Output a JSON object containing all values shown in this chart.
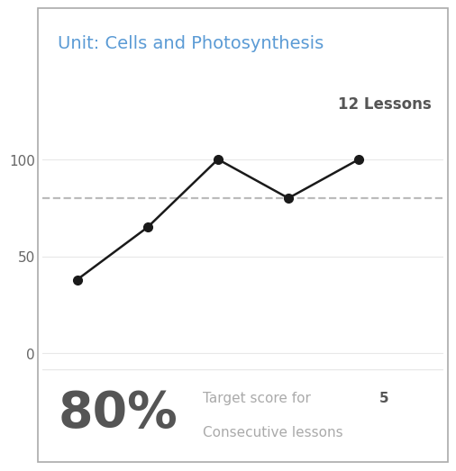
{
  "title": "Unit: Cells and Photosynthesis",
  "title_color": "#5b9bd5",
  "lessons_label": "12 Lessons",
  "lessons_color": "#555555",
  "header_bg": "#d4d4d4",
  "chart_bg": "#ffffff",
  "card_bg": "#ffffff",
  "border_color": "#aaaaaa",
  "x_values": [
    1,
    2,
    3,
    4,
    5
  ],
  "y_values": [
    38,
    65,
    100,
    80,
    100
  ],
  "line_color": "#1a1a1a",
  "marker_color": "#1a1a1a",
  "marker_size": 7,
  "line_width": 1.8,
  "dashed_line_y": 80,
  "dashed_color": "#bbbbbb",
  "yticks": [
    0,
    50,
    100
  ],
  "ylim": [
    -8,
    120
  ],
  "xlim": [
    0.5,
    6.2
  ],
  "grid_color": "#e8e8e8",
  "footer_bg": "#ffffff",
  "percent_text": "80%",
  "percent_color": "#555555",
  "percent_fontsize": 40,
  "target_text_normal": "Target score for ",
  "target_bold": "5",
  "target_text2": "Consecutive lessons",
  "target_color": "#aaaaaa",
  "target_bold_color": "#555555",
  "target_fontsize": 11,
  "title_fontsize": 14,
  "lessons_fontsize": 12
}
